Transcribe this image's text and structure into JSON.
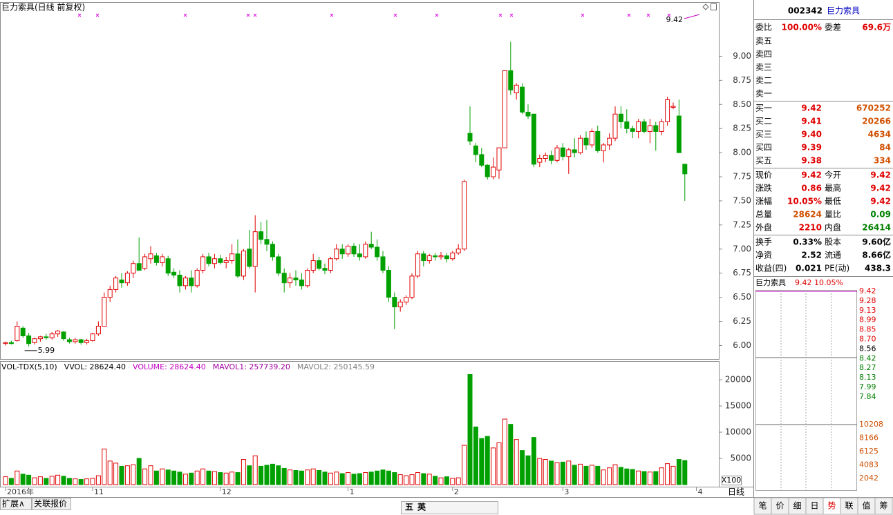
{
  "chart_data": {
    "type": "candlestick",
    "title": "巨力索具(日线 前复权)",
    "up_color": "#e00000",
    "down_color": "#00a000",
    "ylim": [
      5.86,
      9.44
    ],
    "yticks": [
      {
        "value": 6,
        "label": "6.00"
      },
      {
        "value": 6.25,
        "label": "6.25"
      },
      {
        "value": 6.5,
        "label": "6.50"
      },
      {
        "value": 6.75,
        "label": "6.75"
      },
      {
        "value": 7,
        "label": "7.00"
      },
      {
        "value": 7.25,
        "label": "7.25"
      },
      {
        "value": 7.5,
        "label": "7.50"
      },
      {
        "value": 7.75,
        "label": "7.75"
      },
      {
        "value": 8,
        "label": "8.00"
      },
      {
        "value": 8.25,
        "label": "8.25"
      },
      {
        "value": 8.5,
        "label": "8.50"
      },
      {
        "value": 8.75,
        "label": "8.75"
      },
      {
        "value": 9,
        "label": "9.00"
      }
    ],
    "vlim": [
      0,
      23300
    ],
    "vticks": [
      5000,
      10000,
      15000,
      20000
    ],
    "vunit": "X100",
    "x_labels": [
      {
        "index": 0,
        "label": "2016年"
      },
      {
        "index": 15,
        "label": "11"
      },
      {
        "index": 37,
        "label": "12"
      },
      {
        "index": 59,
        "label": "1"
      },
      {
        "index": 77,
        "label": "2"
      },
      {
        "index": 96,
        "label": "3"
      },
      {
        "index": 119,
        "label": "4"
      }
    ],
    "period": "日线",
    "annotations": [
      {
        "index": 4,
        "value": 5.99,
        "label": "5.99"
      },
      {
        "value": 9.42,
        "label": "9.42"
      }
    ],
    "vol_legend": [
      {
        "text": "VOL-TDX(5,10)",
        "color": "#000"
      },
      {
        "text": "VVOL: 28624.40",
        "color": "#000"
      },
      {
        "text": "VOLUME: 28624.40",
        "color": "#c000c0"
      },
      {
        "text": "MAVOL1: 257739.20",
        "color": "#a000a0"
      },
      {
        "text": "MAVOL2: 250145.59",
        "color": "#808080"
      }
    ],
    "candles": [
      [
        6.02,
        6.04,
        6.0,
        6.03
      ],
      [
        6.03,
        6.05,
        6.01,
        6.02
      ],
      [
        6.05,
        6.25,
        6.04,
        6.2
      ],
      [
        6.18,
        6.2,
        6.08,
        6.1
      ],
      [
        6.1,
        6.13,
        5.99,
        6.02
      ],
      [
        6.03,
        6.08,
        6.01,
        6.07
      ],
      [
        6.07,
        6.1,
        6.04,
        6.09
      ],
      [
        6.09,
        6.12,
        6.06,
        6.08
      ],
      [
        6.08,
        6.14,
        6.06,
        6.12
      ],
      [
        6.12,
        6.16,
        6.09,
        6.15
      ],
      [
        6.14,
        6.15,
        6.05,
        6.07
      ],
      [
        6.06,
        6.08,
        6.02,
        6.04
      ],
      [
        6.04,
        6.08,
        6.02,
        6.06
      ],
      [
        6.06,
        6.07,
        6.01,
        6.03
      ],
      [
        6.03,
        6.07,
        6.01,
        6.05
      ],
      [
        6.05,
        6.13,
        6.04,
        6.12
      ],
      [
        6.12,
        6.25,
        6.1,
        6.2
      ],
      [
        6.2,
        6.55,
        6.2,
        6.5
      ],
      [
        6.5,
        6.62,
        6.45,
        6.58
      ],
      [
        6.58,
        6.72,
        6.55,
        6.7
      ],
      [
        6.68,
        6.75,
        6.6,
        6.65
      ],
      [
        6.65,
        6.77,
        6.62,
        6.75
      ],
      [
        6.75,
        6.88,
        6.7,
        6.85
      ],
      [
        6.85,
        7.12,
        6.8,
        6.78
      ],
      [
        6.8,
        6.95,
        6.78,
        6.92
      ],
      [
        6.9,
        7.03,
        6.85,
        6.95
      ],
      [
        6.93,
        6.96,
        6.83,
        6.86
      ],
      [
        6.86,
        6.95,
        6.82,
        6.92
      ],
      [
        6.9,
        6.93,
        6.72,
        6.75
      ],
      [
        6.76,
        6.8,
        6.7,
        6.73
      ],
      [
        6.73,
        6.78,
        6.55,
        6.62
      ],
      [
        6.62,
        6.72,
        6.58,
        6.7
      ],
      [
        6.7,
        6.78,
        6.55,
        6.62
      ],
      [
        6.62,
        6.8,
        6.6,
        6.78
      ],
      [
        6.78,
        6.95,
        6.75,
        6.92
      ],
      [
        6.92,
        6.96,
        6.82,
        6.85
      ],
      [
        6.85,
        6.95,
        6.8,
        6.9
      ],
      [
        6.9,
        6.94,
        6.84,
        6.86
      ],
      [
        6.86,
        6.92,
        6.8,
        6.88
      ],
      [
        6.88,
        7.05,
        6.85,
        6.95
      ],
      [
        6.95,
        7.1,
        6.7,
        6.72
      ],
      [
        6.72,
        7.0,
        6.68,
        6.98
      ],
      [
        7.0,
        7.2,
        6.8,
        6.82
      ],
      [
        6.82,
        7.35,
        6.55,
        7.18
      ],
      [
        7.18,
        7.28,
        7.05,
        7.1
      ],
      [
        7.1,
        7.3,
        6.98,
        7.05
      ],
      [
        7.05,
        7.08,
        6.88,
        6.92
      ],
      [
        6.92,
        6.95,
        6.72,
        6.75
      ],
      [
        6.75,
        6.8,
        6.55,
        6.65
      ],
      [
        6.65,
        6.75,
        6.6,
        6.7
      ],
      [
        6.7,
        6.78,
        6.62,
        6.68
      ],
      [
        6.68,
        6.75,
        6.58,
        6.62
      ],
      [
        6.62,
        6.8,
        6.6,
        6.78
      ],
      [
        6.78,
        6.95,
        6.75,
        6.88
      ],
      [
        6.88,
        6.92,
        6.78,
        6.8
      ],
      [
        6.8,
        6.85,
        6.74,
        6.78
      ],
      [
        6.78,
        6.92,
        6.75,
        6.9
      ],
      [
        6.9,
        7.05,
        6.88,
        7.0
      ],
      [
        7.0,
        7.05,
        6.9,
        6.95
      ],
      [
        6.95,
        7.05,
        6.92,
        7.03
      ],
      [
        7.03,
        7.06,
        6.92,
        6.95
      ],
      [
        6.95,
        7.05,
        6.88,
        6.92
      ],
      [
        6.92,
        7.08,
        6.9,
        7.05
      ],
      [
        7.05,
        7.18,
        7.0,
        7.02
      ],
      [
        7.02,
        7.1,
        6.88,
        6.92
      ],
      [
        6.92,
        6.98,
        6.75,
        6.78
      ],
      [
        6.78,
        6.82,
        6.45,
        6.5
      ],
      [
        6.5,
        6.55,
        6.17,
        6.4
      ],
      [
        6.4,
        6.48,
        6.35,
        6.45
      ],
      [
        6.45,
        6.52,
        6.42,
        6.5
      ],
      [
        6.5,
        6.75,
        6.48,
        6.72
      ],
      [
        6.72,
        6.98,
        6.7,
        6.95
      ],
      [
        6.95,
        6.98,
        6.82,
        6.88
      ],
      [
        6.88,
        6.95,
        6.85,
        6.93
      ],
      [
        6.93,
        6.96,
        6.88,
        6.92
      ],
      [
        6.92,
        6.97,
        6.89,
        6.93
      ],
      [
        6.93,
        6.96,
        6.86,
        6.9
      ],
      [
        6.9,
        6.98,
        6.88,
        6.96
      ],
      [
        6.96,
        7.05,
        6.94,
        7.0
      ],
      [
        7.0,
        7.72,
        6.98,
        7.7
      ],
      [
        8.2,
        8.48,
        8.08,
        8.12
      ],
      [
        8.07,
        8.1,
        7.9,
        7.98
      ],
      [
        7.98,
        8.05,
        7.85,
        7.87
      ],
      [
        7.87,
        7.88,
        7.72,
        7.75
      ],
      [
        7.75,
        7.95,
        7.72,
        7.85
      ],
      [
        7.82,
        8.05,
        7.73,
        8.05
      ],
      [
        8.05,
        8.85,
        8.05,
        8.85
      ],
      [
        8.85,
        9.15,
        8.6,
        8.65
      ],
      [
        8.62,
        8.72,
        8.55,
        8.7
      ],
      [
        8.68,
        8.72,
        8.4,
        8.42
      ],
      [
        8.42,
        8.5,
        8.35,
        8.38
      ],
      [
        8.4,
        8.4,
        7.85,
        7.88
      ],
      [
        7.9,
        7.98,
        7.85,
        7.94
      ],
      [
        7.94,
        8.0,
        7.9,
        7.97
      ],
      [
        7.97,
        8.02,
        7.88,
        7.92
      ],
      [
        7.92,
        8.08,
        7.9,
        8.05
      ],
      [
        8.05,
        8.1,
        7.92,
        7.96
      ],
      [
        7.96,
        8.05,
        7.78,
        8.03
      ],
      [
        8.03,
        8.15,
        7.95,
        8.0
      ],
      [
        8.0,
        8.18,
        7.98,
        8.15
      ],
      [
        8.15,
        8.22,
        8.03,
        8.08
      ],
      [
        8.08,
        8.25,
        8.05,
        8.22
      ],
      [
        8.22,
        8.28,
        8.0,
        8.02
      ],
      [
        8.02,
        8.1,
        7.9,
        8.08
      ],
      [
        8.08,
        8.2,
        8.03,
        8.15
      ],
      [
        8.15,
        8.48,
        8.12,
        8.4
      ],
      [
        8.4,
        8.48,
        8.25,
        8.32
      ],
      [
        8.32,
        8.45,
        8.2,
        8.25
      ],
      [
        8.25,
        8.28,
        8.15,
        8.22
      ],
      [
        8.22,
        8.35,
        8.15,
        8.32
      ],
      [
        8.32,
        8.35,
        8.2,
        8.22
      ],
      [
        8.22,
        8.35,
        8.1,
        8.28
      ],
      [
        8.28,
        8.32,
        8.02,
        8.22
      ],
      [
        8.22,
        8.35,
        8.18,
        8.32
      ],
      [
        8.32,
        8.58,
        8.28,
        8.55
      ],
      [
        8.47,
        8.52,
        8.45,
        8.48
      ],
      [
        8.38,
        8.55,
        8.0,
        8.0
      ],
      [
        7.88,
        7.88,
        7.5,
        7.78
      ]
    ],
    "volume": [
      1500,
      1200,
      2600,
      2000,
      1800,
      1300,
      1500,
      1200,
      1600,
      1800,
      1600,
      1200,
      1100,
      1000,
      1100,
      1200,
      1700,
      6800,
      4500,
      4100,
      3500,
      3600,
      3800,
      5000,
      3000,
      3600,
      2600,
      3000,
      2800,
      2600,
      2400,
      2000,
      2200,
      2600,
      3000,
      2600,
      2500,
      2300,
      2200,
      2400,
      2300,
      4800,
      3600,
      5500,
      3500,
      3700,
      3900,
      3600,
      3100,
      2800,
      2700,
      2600,
      2800,
      3000,
      2700,
      2400,
      2200,
      2400,
      2100,
      2300,
      2000,
      2100,
      2300,
      2400,
      2600,
      2800,
      2600,
      2300,
      1900,
      1700,
      1900,
      2300,
      2100,
      2000,
      1600,
      1300,
      1500,
      1200,
      1300,
      7500,
      21000,
      11000,
      8800,
      9200,
      7000,
      8000,
      12500,
      11500,
      8600,
      6500,
      5500,
      9000,
      5000,
      4800,
      4500,
      4200,
      4300,
      4500,
      3700,
      3900,
      3500,
      3700,
      3500,
      2800,
      3200,
      3800,
      3300,
      3000,
      2900,
      2600,
      2500,
      2400,
      2500,
      3200,
      4000,
      3500,
      4800,
      4600
    ]
  },
  "quote": {
    "code": "002342",
    "name": "巨力索具",
    "ratio_label": "委比",
    "ratio": "100.00%",
    "diff_label": "委差",
    "diff": "69.6万",
    "asks": [
      "卖五",
      "卖四",
      "卖三",
      "卖二",
      "卖一"
    ],
    "bids": [
      {
        "label": "买一",
        "price": "9.42",
        "volume": "670252"
      },
      {
        "label": "买二",
        "price": "9.41",
        "volume": "20266"
      },
      {
        "label": "买三",
        "price": "9.40",
        "volume": "4634"
      },
      {
        "label": "买四",
        "price": "9.39",
        "volume": "84"
      },
      {
        "label": "买五",
        "price": "9.38",
        "volume": "334"
      }
    ],
    "stats": [
      {
        "l1": "现价",
        "v1": "9.42",
        "c1": "#e00000",
        "l2": "今开",
        "v2": "9.42",
        "c2": "#e00000"
      },
      {
        "l1": "涨跌",
        "v1": "0.86",
        "c1": "#e00000",
        "l2": "最高",
        "v2": "9.42",
        "c2": "#e00000"
      },
      {
        "l1": "涨幅",
        "v1": "10.05%",
        "c1": "#e00000",
        "l2": "最低",
        "v2": "9.42",
        "c2": "#e00000"
      },
      {
        "l1": "总量",
        "v1": "28624",
        "c1": "#d05000",
        "l2": "量比",
        "v2": "0.09",
        "c2": "#008000"
      },
      {
        "l1": "外盘",
        "v1": "2210",
        "c1": "#e00000",
        "l2": "内盘",
        "v2": "26414",
        "c2": "#008000"
      },
      {
        "l1": "换手",
        "v1": "0.33%",
        "c1": "#000",
        "l2": "股本",
        "v2": "9.60亿",
        "c2": "#000"
      },
      {
        "l1": "净资",
        "v1": "2.52",
        "c1": "#000",
        "l2": "流通",
        "v2": "8.66亿",
        "c2": "#000"
      },
      {
        "l1": "收益(四)",
        "v1": "0.021",
        "c1": "#000",
        "l2": "PE(动)",
        "v2": "438.3",
        "c2": "#000"
      }
    ]
  },
  "mini": {
    "name": "巨力索具",
    "price": "9.42",
    "change": "10.05%",
    "price_ticks": [
      "9.42",
      "9.28",
      "9.13",
      "8.99",
      "8.85",
      "8.70",
      "8.56",
      "8.42",
      "8.27",
      "8.13",
      "7.99",
      "7.84"
    ],
    "volume_ticks": [
      "10208",
      "8166",
      "6125",
      "4083",
      "2042"
    ]
  },
  "ui": {
    "tabs": [
      "笔",
      "价",
      "细",
      "日",
      "势",
      "联",
      "值",
      "筹"
    ],
    "bottom_left": [
      "扩展∧",
      "关联报价"
    ],
    "ime": [
      "五",
      "英"
    ]
  }
}
